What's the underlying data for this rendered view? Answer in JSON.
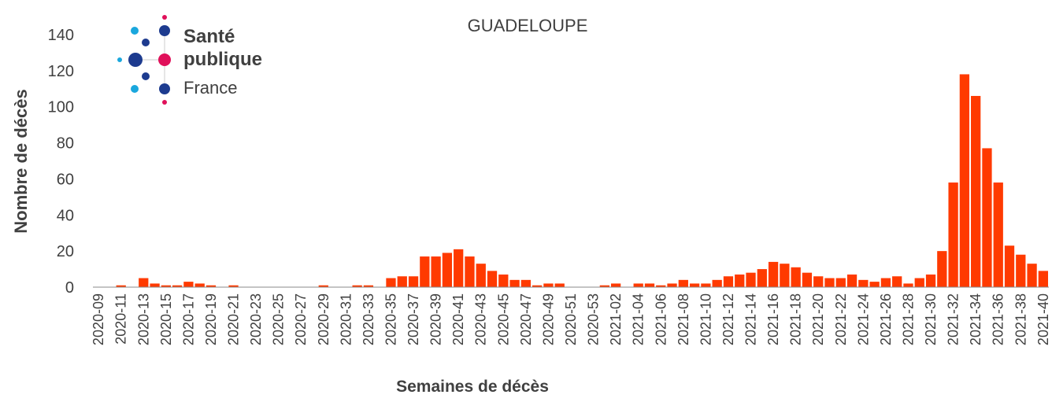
{
  "chart_data": {
    "type": "bar",
    "title": "GUADELOUPE",
    "x_label": "Semaines de décès",
    "y_label": "Nombre de décès",
    "categories": [
      "2020-09",
      null,
      "2020-11",
      null,
      "2020-13",
      null,
      "2020-15",
      null,
      "2020-17",
      null,
      "2020-19",
      null,
      "2020-21",
      null,
      "2020-23",
      null,
      "2020-25",
      null,
      "2020-27",
      null,
      "2020-29",
      null,
      "2020-31",
      null,
      "2020-33",
      null,
      "2020-35",
      null,
      "2020-37",
      null,
      "2020-39",
      null,
      "2020-41",
      null,
      "2020-43",
      null,
      "2020-45",
      null,
      "2020-47",
      null,
      "2020-49",
      null,
      "2020-51",
      null,
      "2020-53",
      null,
      "2021-02",
      null,
      "2021-04",
      null,
      "2021-06",
      null,
      "2021-08",
      null,
      "2021-10",
      null,
      "2021-12",
      null,
      "2021-14",
      null,
      "2021-16",
      null,
      "2021-18",
      null,
      "2021-20",
      null,
      "2021-22",
      null,
      "2021-24",
      null,
      "2021-26",
      null,
      "2021-28",
      null,
      "2021-30",
      null,
      "2021-32",
      null,
      "2021-34",
      null,
      "2021-36",
      null,
      "2021-38",
      null,
      "2021-40"
    ],
    "values": [
      0,
      0,
      1,
      0,
      5,
      2,
      1,
      1,
      3,
      2,
      1,
      0,
      1,
      0,
      0,
      0,
      0,
      0,
      0,
      0,
      1,
      0,
      0,
      1,
      1,
      0,
      5,
      6,
      6,
      17,
      17,
      19,
      21,
      17,
      13,
      9,
      7,
      4,
      4,
      1,
      2,
      2,
      0,
      0,
      0,
      1,
      2,
      0,
      2,
      2,
      1,
      2,
      4,
      2,
      2,
      4,
      6,
      7,
      8,
      10,
      14,
      13,
      11,
      8,
      6,
      5,
      5,
      7,
      4,
      3,
      5,
      6,
      2,
      5,
      7,
      20,
      58,
      118,
      106,
      77,
      58,
      23,
      18,
      13,
      9
    ],
    "color": "#ff3a00",
    "ylim": [
      0,
      140
    ],
    "yticks": [
      0,
      20,
      40,
      60,
      80,
      100,
      120,
      140
    ],
    "grid": false
  },
  "logo": {
    "line1": "Santé",
    "line2": "publique",
    "line3": "France"
  }
}
